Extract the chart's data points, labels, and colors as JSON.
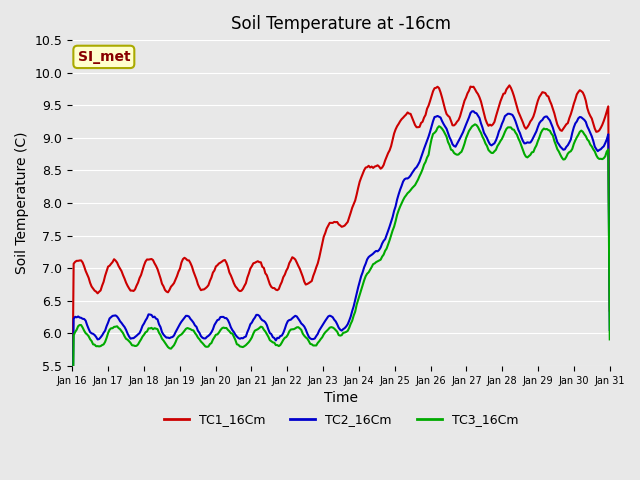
{
  "title": "Soil Temperature at -16cm",
  "xlabel": "Time",
  "ylabel": "Soil Temperature (C)",
  "ylim": [
    5.5,
    10.5
  ],
  "xlim": [
    0,
    15
  ],
  "background_color": "#e8e8e8",
  "plot_bg_color": "#e8e8e8",
  "grid_color": "#ffffff",
  "annotation_text": "SI_met",
  "annotation_bg": "#ffffcc",
  "annotation_border": "#aaaa00",
  "annotation_text_color": "#880000",
  "series": {
    "TC1_16Cm": {
      "color": "#cc0000",
      "linewidth": 1.5
    },
    "TC2_16Cm": {
      "color": "#0000cc",
      "linewidth": 1.5
    },
    "TC3_16Cm": {
      "color": "#00aa00",
      "linewidth": 1.5
    }
  },
  "xtick_positions": [
    0,
    1,
    2,
    3,
    4,
    5,
    6,
    7,
    8,
    9,
    10,
    11,
    12,
    13,
    14,
    15
  ],
  "xtick_labels": [
    "Jan 16",
    "Jan 17",
    "Jan 18",
    "Jan 19",
    "Jan 20",
    "Jan 21",
    "Jan 22",
    "Jan 23",
    "Jan 24",
    "Jan 25",
    "Jan 26",
    "Jan 27",
    "Jan 28",
    "Jan 29",
    "Jan 30",
    "Jan 31"
  ],
  "ytick_values": [
    5.5,
    6.0,
    6.5,
    7.0,
    7.5,
    8.0,
    8.5,
    9.0,
    9.5,
    10.0,
    10.5
  ],
  "legend_labels": [
    "TC1_16Cm",
    "TC2_16Cm",
    "TC3_16Cm"
  ]
}
